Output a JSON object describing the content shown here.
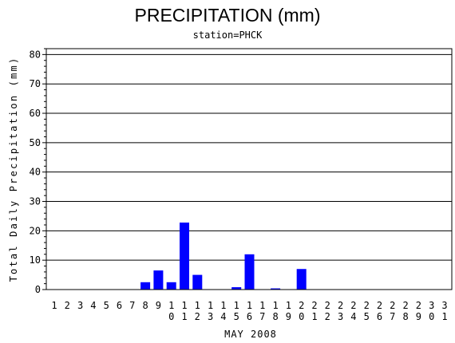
{
  "chart_data": {
    "type": "bar",
    "title": "PRECIPITATION (mm)",
    "subtitle": "station=PHCK",
    "xlabel": "MAY 2008",
    "ylabel": "Total Daily Precipitation (mm)",
    "ylim": [
      0,
      82
    ],
    "yticks": [
      0,
      10,
      20,
      30,
      40,
      50,
      60,
      70,
      80
    ],
    "grid": true,
    "bar_color": "#0000ff",
    "categories": [
      "1",
      "2",
      "3",
      "4",
      "5",
      "6",
      "7",
      "8",
      "9",
      "10",
      "11",
      "12",
      "13",
      "14",
      "15",
      "16",
      "17",
      "18",
      "19",
      "20",
      "21",
      "22",
      "23",
      "24",
      "25",
      "26",
      "27",
      "28",
      "29",
      "30",
      "31"
    ],
    "values": [
      0,
      0,
      0,
      0,
      0,
      0,
      0,
      2.5,
      6.5,
      2.5,
      22.8,
      5,
      0,
      0,
      0.8,
      12,
      0,
      0.4,
      0,
      7,
      0,
      0,
      0,
      0,
      0,
      0,
      0,
      0,
      0,
      0,
      0
    ]
  }
}
